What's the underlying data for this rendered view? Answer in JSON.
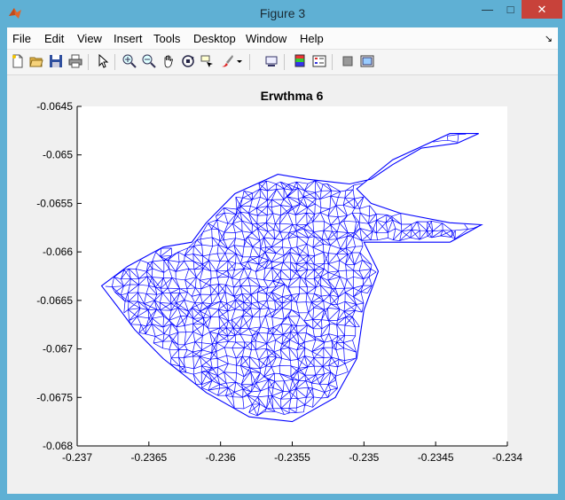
{
  "window": {
    "title": "Figure 3"
  },
  "menu": [
    "File",
    "Edit",
    "View",
    "Insert",
    "Tools",
    "Desktop",
    "Window",
    "Help"
  ],
  "toolbar_icons": [
    "new-figure-icon",
    "open-file-icon",
    "save-icon",
    "print-icon",
    "select-arrow-icon",
    "zoom-in-icon",
    "zoom-out-icon",
    "pan-hand-icon",
    "rotate-3d-icon",
    "data-cursor-icon",
    "brush-icon",
    "brush-dropdown-icon",
    "link-plot-icon",
    "colorbar-icon",
    "legend-icon",
    "hide-plot-tools-icon",
    "show-plot-tools-icon"
  ],
  "chart_data": {
    "type": "line",
    "title": "Erwthma 6",
    "xlabel": "",
    "ylabel": "",
    "xlim": [
      -0.237,
      -0.234
    ],
    "ylim": [
      -0.068,
      -0.0645
    ],
    "xticks": [
      "-0.237",
      "-0.2365",
      "-0.236",
      "-0.2355",
      "-0.235",
      "-0.2345",
      "-0.234"
    ],
    "yticks": [
      "-0.0645",
      "-0.065",
      "-0.0655",
      "-0.066",
      "-0.0665",
      "-0.067",
      "-0.0675",
      "-0.068"
    ],
    "series": [
      {
        "color": "#0000ff",
        "description_visible": "wireframe triangle mesh",
        "outline_x": [
          -0.23683,
          -0.23665,
          -0.2364,
          -0.2362,
          -0.2361,
          -0.2359,
          -0.2356,
          -0.2354,
          -0.2351,
          -0.23495,
          -0.2348,
          -0.2346,
          -0.23435,
          -0.2342,
          -0.2344,
          -0.2348,
          -0.23505,
          -0.23495,
          -0.23475,
          -0.2344,
          -0.23418,
          -0.2344,
          -0.2348,
          -0.235,
          -0.2349,
          -0.235,
          -0.23505,
          -0.2352,
          -0.2355,
          -0.2358,
          -0.2361,
          -0.2364,
          -0.2366,
          -0.2367,
          -0.23683
        ],
        "outline_y": [
          -0.06635,
          -0.06615,
          -0.06595,
          -0.0659,
          -0.0657,
          -0.0654,
          -0.0652,
          -0.06525,
          -0.0653,
          -0.06525,
          -0.0651,
          -0.06493,
          -0.06488,
          -0.06478,
          -0.06478,
          -0.06505,
          -0.06535,
          -0.0655,
          -0.0656,
          -0.0657,
          -0.06572,
          -0.0659,
          -0.0659,
          -0.0659,
          -0.0662,
          -0.0666,
          -0.0671,
          -0.0675,
          -0.06775,
          -0.0677,
          -0.06745,
          -0.0671,
          -0.0668,
          -0.0666,
          -0.06635
        ]
      }
    ],
    "grid": false,
    "legend": "none"
  }
}
